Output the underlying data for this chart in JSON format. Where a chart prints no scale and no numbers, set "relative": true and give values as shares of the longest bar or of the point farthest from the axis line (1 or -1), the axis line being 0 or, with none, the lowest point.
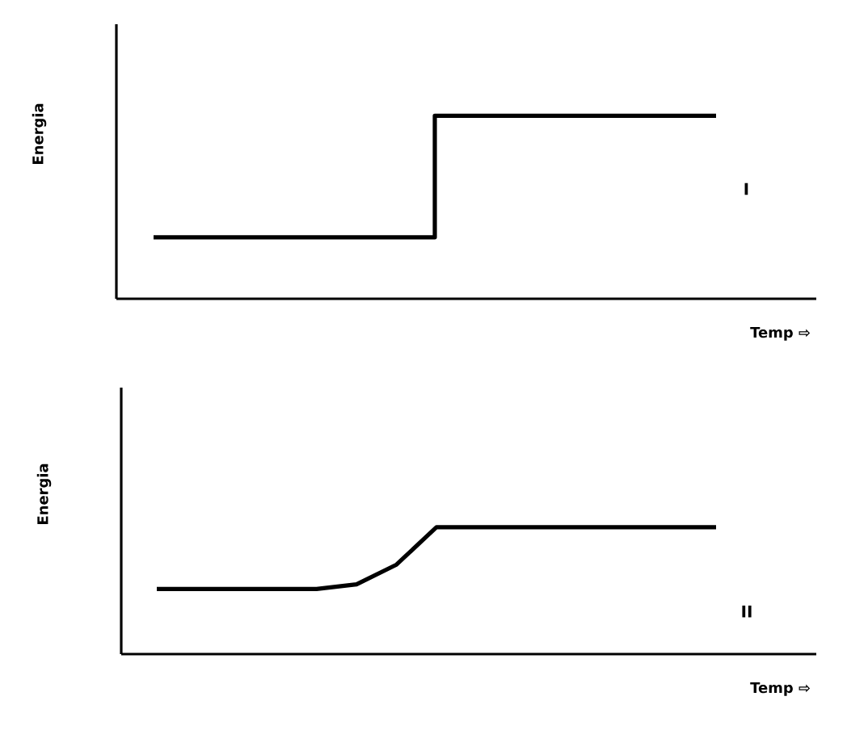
{
  "chart_data": [
    {
      "type": "step",
      "relative": true,
      "ylabel": "Energia",
      "xlabel": "Temp ⇨",
      "annotations": [
        "I"
      ],
      "categories": [
        null,
        null,
        null
      ],
      "series": [
        {
          "color": "#000000",
          "values": [
            0.336,
            1,
            1
          ]
        }
      ]
    },
    {
      "type": "line",
      "relative": true,
      "ylabel": "Energia",
      "xlabel": "Temp ⇨",
      "annotations": [
        "II"
      ],
      "categories": [
        null,
        null,
        null,
        null,
        null,
        null,
        null,
        null,
        null,
        null,
        null,
        null,
        null,
        null,
        null
      ],
      "series": [
        {
          "color": "#000000",
          "values": [
            0.513,
            0.513,
            0.513,
            0.513,
            0.513,
            0.55,
            0.705,
            1,
            1,
            1,
            1,
            1,
            1,
            1,
            1
          ]
        }
      ]
    }
  ]
}
